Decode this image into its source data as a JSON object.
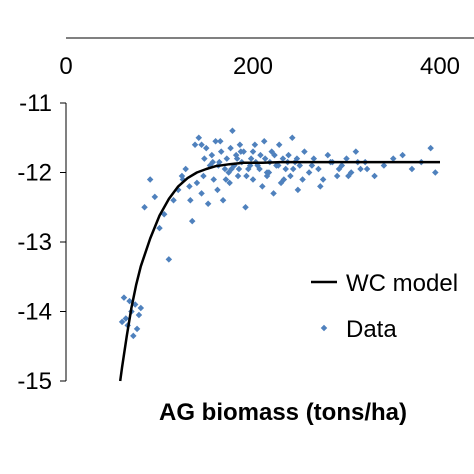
{
  "chart_data": {
    "type": "scatter",
    "title": "",
    "xlabel": "AG biomass (tons/ha)",
    "ylabel": "",
    "x_axis_position": "top",
    "xlim": [
      0,
      400
    ],
    "ylim": [
      -15,
      -11
    ],
    "x_ticks": [
      "0",
      "200",
      "400"
    ],
    "y_ticks": [
      "-11",
      "-12",
      "-13",
      "-14",
      "-15"
    ],
    "grid": false,
    "legend_position": "right",
    "series": [
      {
        "name": "WC model",
        "kind": "line",
        "color": "#000000",
        "x": [
          58,
          60,
          65,
          70,
          75,
          80,
          90,
          100,
          110,
          120,
          130,
          140,
          150,
          160,
          175,
          190,
          210,
          230,
          260,
          300,
          350,
          400
        ],
        "y": [
          -15.0,
          -14.8,
          -14.35,
          -13.95,
          -13.62,
          -13.35,
          -12.95,
          -12.62,
          -12.38,
          -12.2,
          -12.08,
          -12.0,
          -11.95,
          -11.91,
          -11.88,
          -11.86,
          -11.86,
          -11.85,
          -11.85,
          -11.85,
          -11.85,
          -11.85
        ]
      },
      {
        "name": "Data",
        "kind": "scatter",
        "color": "#4f81bd",
        "x": [
          60,
          62,
          64,
          66,
          68,
          70,
          72,
          74,
          76,
          78,
          80,
          84,
          90,
          95,
          100,
          105,
          110,
          115,
          120,
          124,
          128,
          132,
          135,
          138,
          140,
          142,
          145,
          148,
          150,
          152,
          154,
          156,
          158,
          160,
          162,
          164,
          166,
          168,
          170,
          172,
          174,
          176,
          178,
          180,
          182,
          184,
          186,
          188,
          190,
          192,
          195,
          198,
          200,
          202,
          205,
          208,
          210,
          212,
          215,
          218,
          220,
          222,
          225,
          228,
          230,
          232,
          235,
          238,
          240,
          242,
          245,
          248,
          250,
          255,
          260,
          265,
          270,
          275,
          280,
          285,
          290,
          295,
          300,
          305,
          310,
          315,
          320,
          330,
          340,
          350,
          360,
          370,
          380,
          390,
          395,
          125,
          133,
          147,
          157,
          163,
          171,
          177,
          183,
          187,
          193,
          197,
          203,
          207,
          213,
          217,
          223,
          227,
          233,
          237,
          243,
          247,
          253,
          263,
          272,
          283,
          292,
          302,
          312,
          322,
          145,
          165,
          175,
          185,
          200,
          215
        ],
        "y": [
          -14.15,
          -13.8,
          -14.1,
          -14.2,
          -13.85,
          -14.0,
          -14.35,
          -13.9,
          -14.25,
          -14.05,
          -13.95,
          -12.5,
          -12.1,
          -12.35,
          -12.8,
          -12.6,
          -13.25,
          -12.4,
          -12.25,
          -12.05,
          -11.95,
          -12.2,
          -12.7,
          -11.6,
          -12.15,
          -11.5,
          -12.3,
          -11.8,
          -11.65,
          -12.45,
          -11.9,
          -11.75,
          -12.1,
          -11.55,
          -12.25,
          -11.85,
          -11.7,
          -12.4,
          -11.95,
          -11.8,
          -12.0,
          -11.65,
          -11.4,
          -11.9,
          -11.75,
          -12.05,
          -11.6,
          -11.85,
          -11.7,
          -12.5,
          -11.95,
          -11.8,
          -12.1,
          -11.6,
          -11.9,
          -11.75,
          -12.2,
          -11.55,
          -12.0,
          -11.85,
          -11.7,
          -12.3,
          -11.9,
          -11.6,
          -12.15,
          -11.8,
          -11.95,
          -11.75,
          -12.05,
          -11.5,
          -11.85,
          -12.25,
          -11.9,
          -11.7,
          -12.0,
          -11.8,
          -11.95,
          -12.1,
          -11.75,
          -11.85,
          -12.05,
          -11.9,
          -11.8,
          -12.0,
          -11.7,
          -11.95,
          -11.85,
          -12.05,
          -11.9,
          -11.8,
          -11.75,
          -11.95,
          -11.85,
          -11.65,
          -12.0,
          -12.1,
          -12.4,
          -12.05,
          -11.85,
          -11.9,
          -12.1,
          -11.95,
          -11.8,
          -11.7,
          -12.05,
          -11.9,
          -11.85,
          -11.95,
          -11.8,
          -12.0,
          -11.75,
          -11.9,
          -12.1,
          -11.85,
          -11.95,
          -11.8,
          -12.1,
          -11.9,
          -12.2,
          -11.85,
          -11.95,
          -12.05,
          -11.85,
          -11.95,
          -11.6,
          -11.55,
          -12.15,
          -11.95,
          -11.7,
          -12.05
        ]
      }
    ],
    "legend": [
      {
        "label": "WC model",
        "marker": "line"
      },
      {
        "label": "Data",
        "marker": "dot"
      }
    ]
  }
}
